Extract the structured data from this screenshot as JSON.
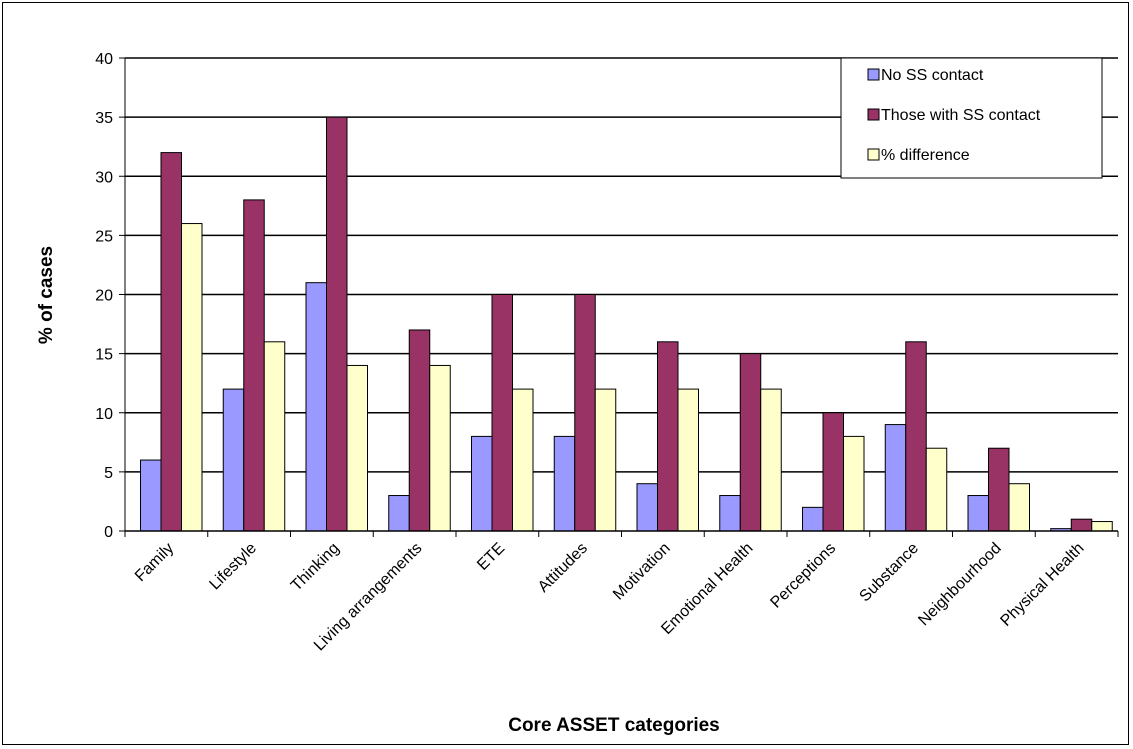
{
  "chart_data": {
    "type": "bar",
    "xlabel": "Core ASSET categories",
    "ylabel": "% of cases",
    "ylim": [
      0,
      40
    ],
    "yticks": [
      0,
      5,
      10,
      15,
      20,
      25,
      30,
      35,
      40
    ],
    "grid": true,
    "legend_position": "top-right",
    "categories": [
      "Family",
      "Lifestyle",
      "Thinking",
      "Living arrangements",
      "ETE",
      "Attitudes",
      "Motivation",
      "Emotional Health",
      "Perceptions",
      "Substance",
      "Neighbourhood",
      "Physical Health"
    ],
    "series": [
      {
        "name": "No SS contact",
        "color": "#9999ff",
        "values": [
          6,
          12,
          21,
          3,
          8,
          8,
          4,
          3,
          2,
          9,
          3,
          0.2
        ]
      },
      {
        "name": "Those with SS contact",
        "color": "#993366",
        "values": [
          32,
          28,
          35,
          17,
          20,
          20,
          16,
          15,
          10,
          16,
          7,
          1
        ]
      },
      {
        "name": "% difference",
        "color": "#ffffcc",
        "values": [
          26,
          16,
          14,
          14,
          12,
          12,
          12,
          12,
          8,
          7,
          4,
          0.8
        ]
      }
    ]
  }
}
